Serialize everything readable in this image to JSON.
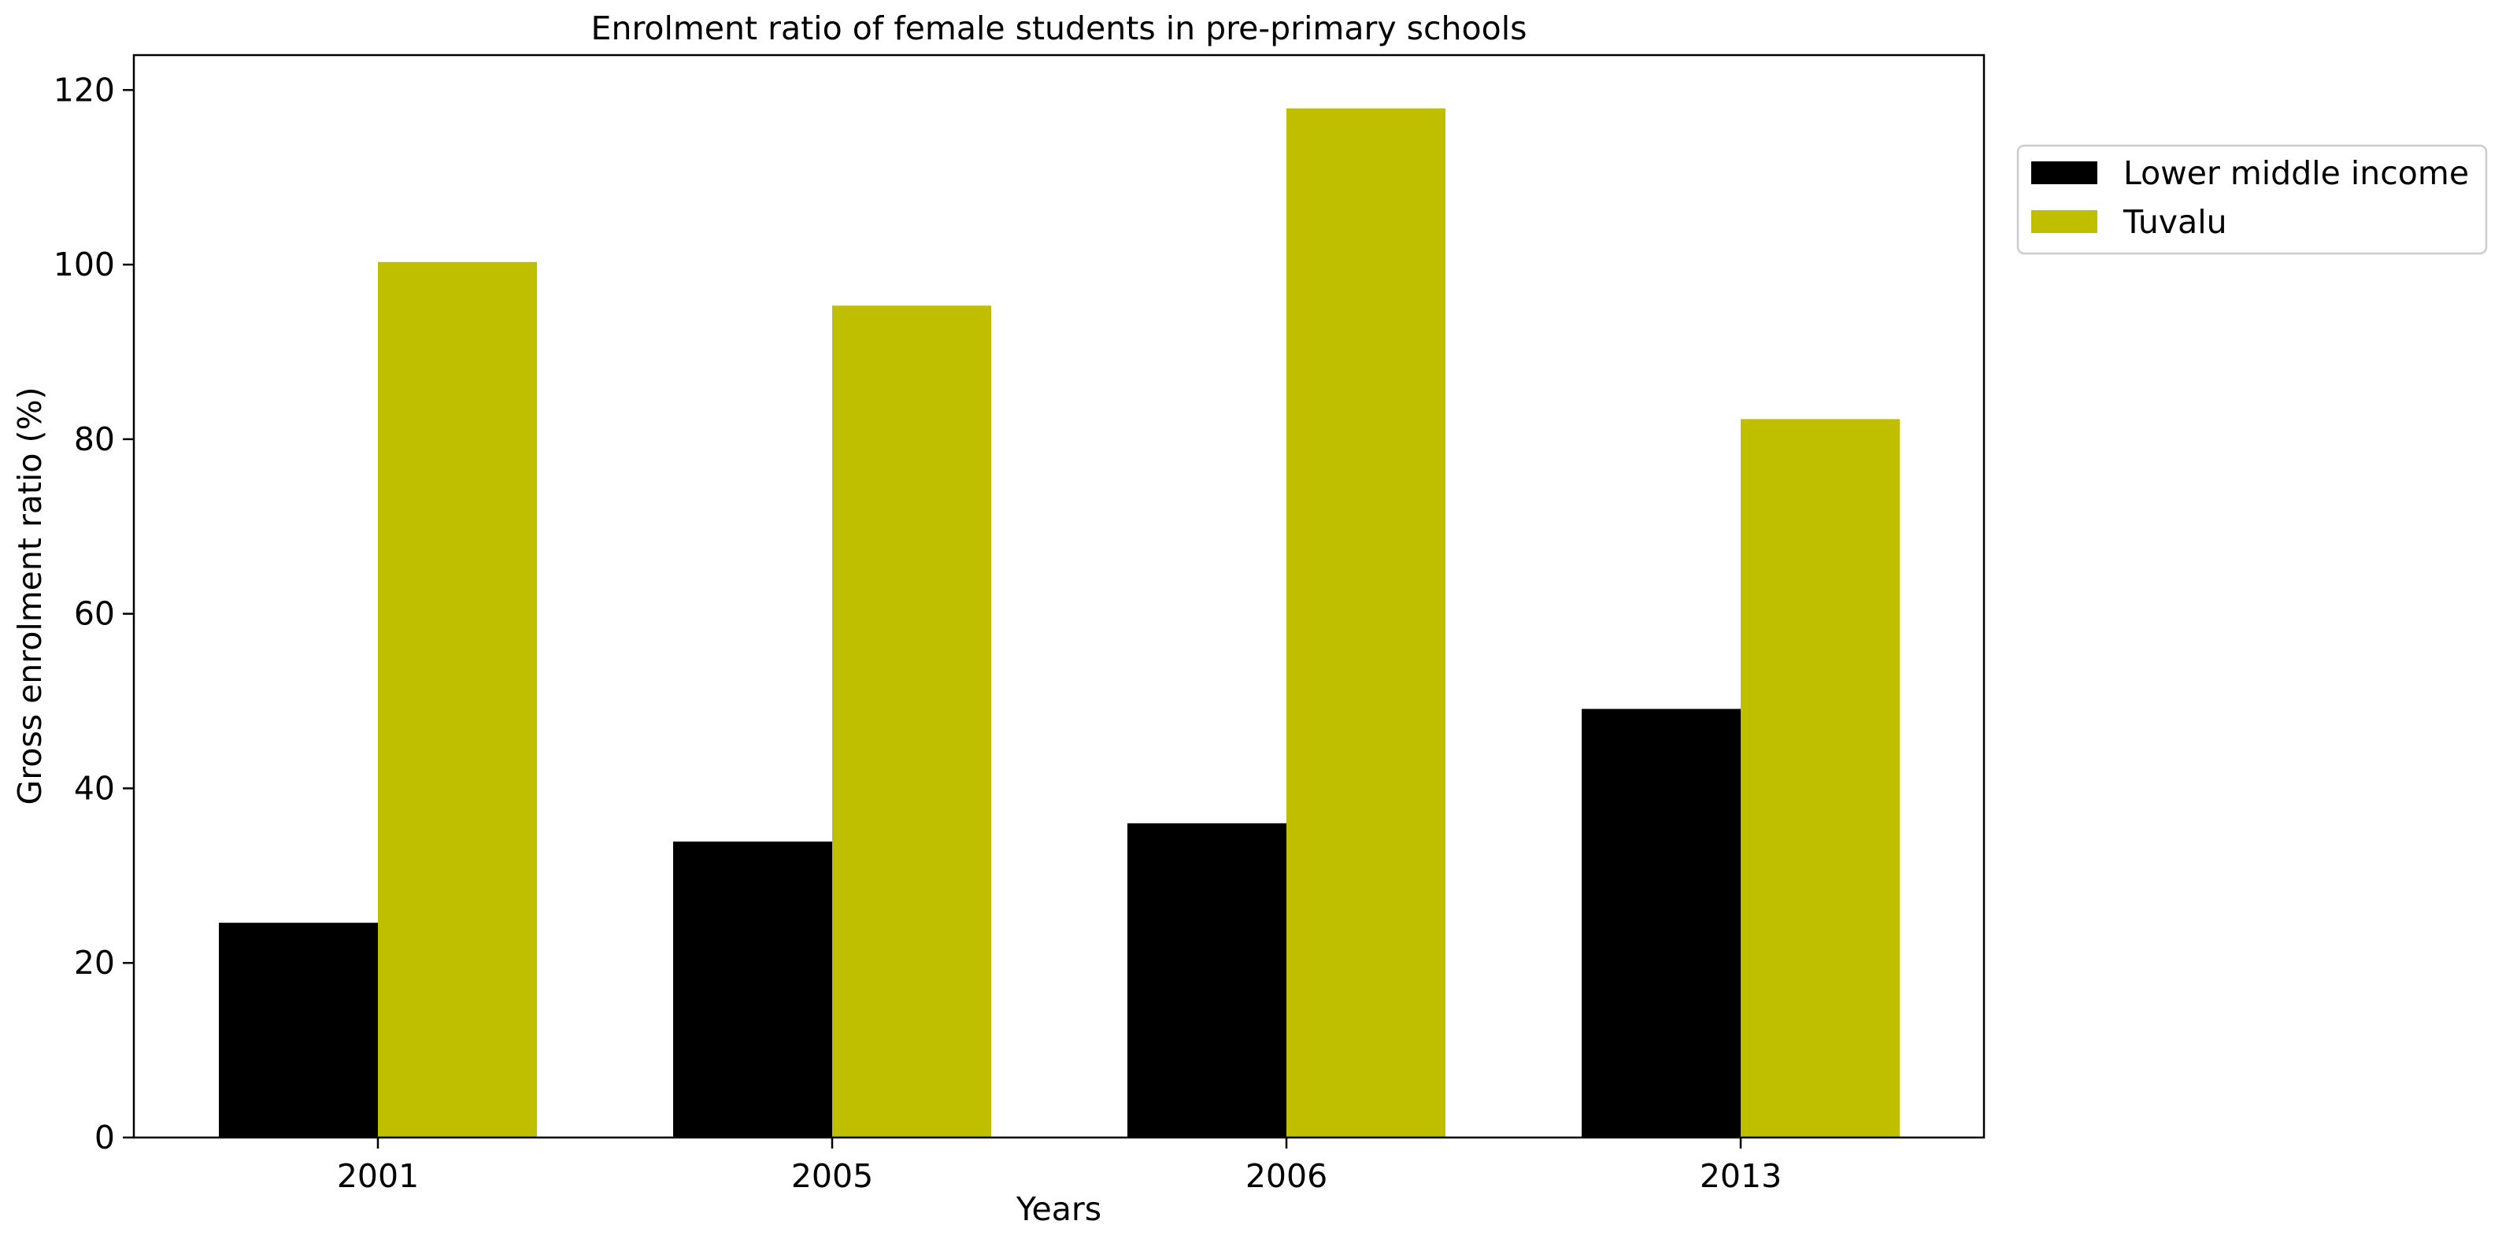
{
  "chart_data": {
    "type": "bar",
    "title": "Enrolment ratio of female students in pre-primary schools",
    "xlabel": "Years",
    "ylabel": "Gross enrolment ratio (%)",
    "categories": [
      "2001",
      "2005",
      "2006",
      "2013"
    ],
    "series": [
      {
        "name": "Lower middle income",
        "color": "#000000",
        "values": [
          24.6,
          33.9,
          36.0,
          49.1
        ]
      },
      {
        "name": "Tuvalu",
        "color": "#bfbf00",
        "values": [
          100.3,
          95.3,
          117.9,
          82.3
        ]
      }
    ],
    "ylim": [
      0,
      124
    ],
    "yticks": [
      0,
      20,
      40,
      60,
      80,
      100,
      120
    ],
    "grid": false,
    "legend_position": "outside-top-right"
  }
}
